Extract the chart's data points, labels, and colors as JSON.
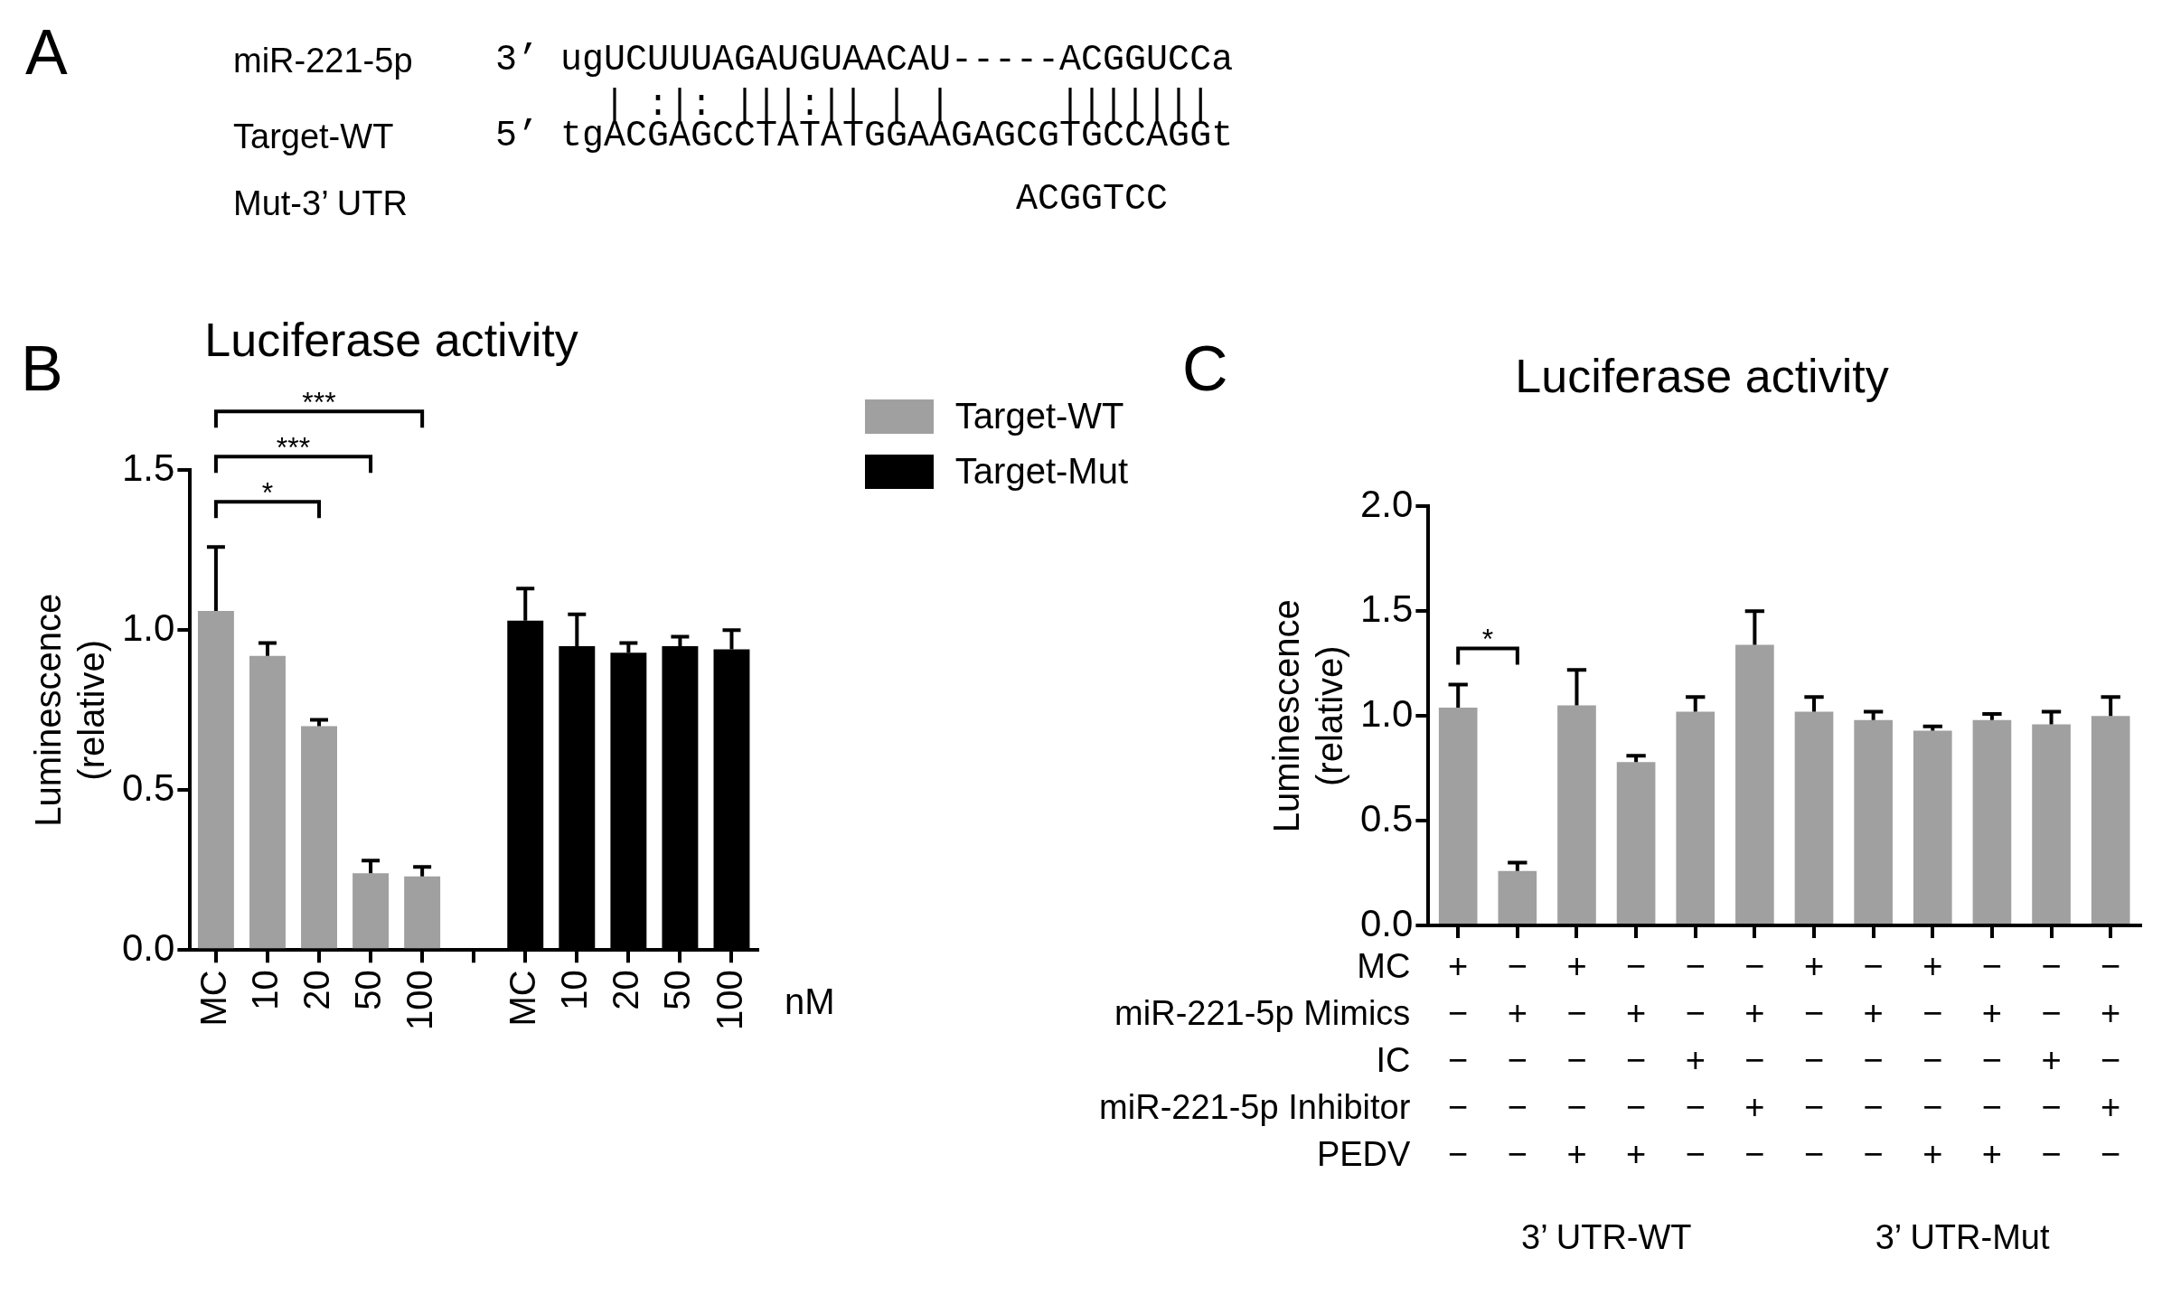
{
  "chart_data": [
    {
      "type": "other",
      "annotations": [
        "A",
        "miR-221-5p",
        "3’ ugUCUUUAGAUGUAACAU-----ACGGUCCa",
        "     | :|: |||:|| | |     ||||||| ",
        "Target-WT",
        "5’ tgACGAGCCTATATGGAAGAGCGTGCCAGGt",
        "Mut-3’ UTR",
        "                        ACGGTCC"
      ]
    },
    {
      "type": "bar",
      "title": "Luciferase activity",
      "xlabel": "nM",
      "ylabel": "Luminescence\n(relative)",
      "categories": [
        "MC",
        "10",
        "20",
        "50",
        "100",
        null,
        "MC",
        "10",
        "20",
        "50",
        "100"
      ],
      "series": [
        {
          "name": "Target-WT",
          "color": "#a0a0a0",
          "values": [
            1.06,
            0.92,
            0.7,
            0.24,
            0.23,
            null,
            null,
            null,
            null,
            null,
            null
          ],
          "errors": [
            0.2,
            0.04,
            0.02,
            0.04,
            0.03,
            null,
            null,
            null,
            null,
            null,
            null
          ]
        },
        {
          "name": "Target-Mut",
          "color": "#000000",
          "values": [
            null,
            null,
            null,
            null,
            null,
            null,
            1.03,
            0.95,
            0.93,
            0.95,
            0.94
          ],
          "errors": [
            null,
            null,
            null,
            null,
            null,
            null,
            0.1,
            0.1,
            0.03,
            0.03,
            0.06
          ]
        }
      ],
      "ylim": [
        0,
        1.5
      ],
      "yticks": [
        {
          "value": 0,
          "label": "0.0"
        },
        {
          "value": 0.5,
          "label": "0.5"
        },
        {
          "value": 1,
          "label": "1.0"
        },
        {
          "value": 1.5,
          "label": "1.5"
        }
      ],
      "legend": "top right",
      "grid": false,
      "annotations": [
        "B",
        "*",
        "***",
        "***"
      ]
    },
    {
      "type": "bar",
      "title": "Luciferase activity",
      "ylabel": "Luminescence\n(relative)",
      "categories": [
        "+\n−\n−\n−\n−",
        "−\n+\n−\n−\n−",
        "+\n−\n−\n−\n+",
        "−\n+\n−\n−\n+",
        "−\n−\n+\n−\n−",
        "−\n+\n−\n+\n−",
        "+\n−\n−\n−\n−",
        "−\n+\n−\n−\n−",
        "+\n−\n−\n−\n+",
        "−\n+\n−\n−\n+",
        "−\n−\n+\n−\n−",
        "−\n+\n−\n+\n−"
      ],
      "series": [
        {
          "color": "#a0a0a0",
          "values": [
            1.04,
            0.26,
            1.05,
            0.78,
            1.02,
            1.34,
            1.02,
            0.98,
            0.93,
            0.98,
            0.96,
            1.0
          ],
          "errors": [
            0.11,
            0.04,
            0.17,
            0.03,
            0.07,
            0.16,
            0.07,
            0.04,
            0.02,
            0.03,
            0.06,
            0.09
          ]
        }
      ],
      "ylim": [
        0,
        2
      ],
      "yticks": [
        {
          "value": 0,
          "label": "0.0"
        },
        {
          "value": 0.5,
          "label": "0.5"
        },
        {
          "value": 1,
          "label": "1.0"
        },
        {
          "value": 1.5,
          "label": "1.5"
        },
        {
          "value": 2,
          "label": "2.0"
        }
      ],
      "legend": false,
      "grid": false,
      "annotations": [
        "C",
        "*",
        "MC",
        "miR-221-5p Mimics",
        "IC",
        "miR-221-5p Inhibitor",
        "PEDV",
        "3’ UTR-WT",
        "3’ UTR-Mut"
      ]
    }
  ]
}
